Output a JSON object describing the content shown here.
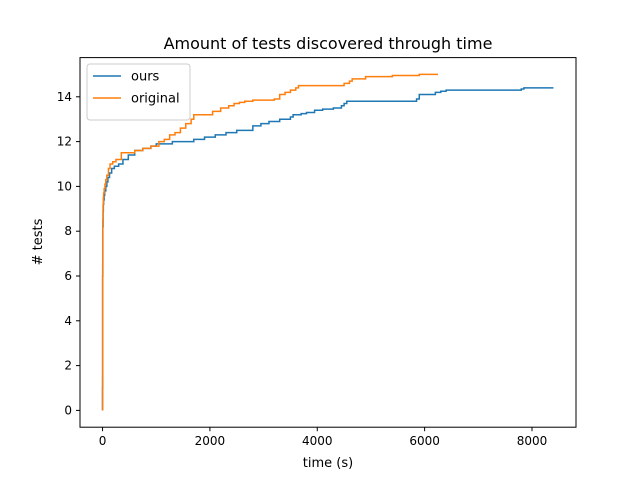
{
  "chart_data": {
    "type": "line",
    "title": "Amount of tests discovered through time",
    "xlabel": "time (s)",
    "ylabel": "# tests",
    "xlim": [
      -420,
      8820
    ],
    "ylim": [
      -0.75,
      15.75
    ],
    "xticks": [
      0,
      2000,
      4000,
      6000,
      8000
    ],
    "yticks": [
      0,
      2,
      4,
      6,
      8,
      10,
      12,
      14
    ],
    "grid": false,
    "legend_position": "upper left",
    "series": [
      {
        "name": "ours",
        "color": "#1f77b4",
        "step": true,
        "x": [
          0,
          0,
          2,
          5,
          10,
          15,
          20,
          30,
          40,
          60,
          80,
          100,
          130,
          170,
          220,
          300,
          380,
          480,
          600,
          750,
          900,
          1000,
          1300,
          1700,
          1900,
          2100,
          2300,
          2500,
          2800,
          2950,
          3100,
          3300,
          3500,
          3550,
          3700,
          3800,
          3950,
          4100,
          4300,
          4450,
          4500,
          4550,
          4800,
          5000,
          5500,
          5850,
          5900,
          6200,
          6300,
          6400,
          7000,
          7500,
          7800,
          7850,
          8400
        ],
        "y": [
          0,
          1,
          6,
          8.2,
          8.9,
          9.2,
          9.4,
          9.6,
          9.8,
          10.0,
          10.2,
          10.4,
          10.6,
          10.8,
          10.9,
          11.0,
          11.2,
          11.4,
          11.6,
          11.7,
          11.8,
          11.9,
          12.0,
          12.1,
          12.2,
          12.3,
          12.4,
          12.5,
          12.7,
          12.8,
          12.9,
          13.0,
          13.1,
          13.2,
          13.25,
          13.3,
          13.4,
          13.45,
          13.5,
          13.6,
          13.7,
          13.8,
          13.8,
          13.8,
          13.8,
          13.9,
          14.1,
          14.2,
          14.25,
          14.3,
          14.3,
          14.3,
          14.35,
          14.4,
          14.4
        ]
      },
      {
        "name": "original",
        "color": "#ff7f0e",
        "step": true,
        "x": [
          0,
          0,
          2,
          5,
          10,
          15,
          20,
          30,
          45,
          60,
          80,
          110,
          140,
          190,
          250,
          350,
          420,
          600,
          750,
          900,
          1050,
          1150,
          1250,
          1350,
          1450,
          1550,
          1650,
          1700,
          2050,
          2200,
          2350,
          2450,
          2550,
          2650,
          2800,
          3200,
          3300,
          3400,
          3500,
          3600,
          3650,
          3700,
          4100,
          4500,
          4600,
          4650,
          4900,
          5400,
          5900,
          6000,
          6250
        ],
        "y": [
          0,
          1.5,
          6.5,
          8.5,
          9.2,
          9.5,
          9.7,
          9.9,
          10.1,
          10.3,
          10.5,
          10.8,
          11.0,
          11.1,
          11.2,
          11.5,
          11.5,
          11.6,
          11.7,
          11.8,
          12.0,
          12.1,
          12.3,
          12.4,
          12.6,
          12.8,
          13.0,
          13.2,
          13.35,
          13.5,
          13.6,
          13.7,
          13.75,
          13.8,
          13.85,
          13.9,
          14.1,
          14.2,
          14.3,
          14.4,
          14.5,
          14.5,
          14.5,
          14.6,
          14.7,
          14.8,
          14.9,
          14.95,
          15.0,
          15.0,
          15.0
        ]
      }
    ]
  }
}
